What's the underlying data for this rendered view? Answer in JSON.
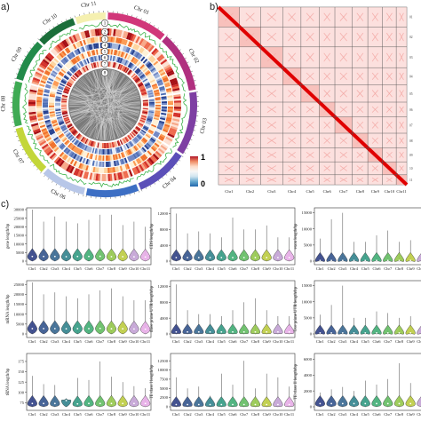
{
  "panels": {
    "a": {
      "letter": "a)"
    },
    "b": {
      "letter": "b)"
    },
    "c": {
      "letter": "c)"
    }
  },
  "circos": {
    "chromosomes": [
      "Chr 01",
      "Chr 02",
      "Chr 03",
      "Chr 04",
      "Chr 05",
      "Chr 06",
      "Chr 07",
      "Chr 08",
      "Chr 09",
      "Chr 10",
      "Chr 11"
    ],
    "chr_colors": [
      "#d1377a",
      "#b0307f",
      "#7e3fa3",
      "#5b4fb8",
      "#3d6fc4",
      "#b8c7e8",
      "#c3d63a",
      "#3faa54",
      "#228a4a",
      "#1b6e3a",
      "#f5f0b0"
    ],
    "track_numbers": [
      "1",
      "2",
      "3",
      "4",
      "5",
      "6",
      "7",
      "8"
    ]
  },
  "colorbar": {
    "max_label": "1",
    "min_label": "0"
  },
  "heatmap": {
    "chromosomes": [
      "Chr1",
      "Chr2",
      "Chr3",
      "Chr4",
      "Chr5",
      "Chr6",
      "Chr7",
      "Chr8",
      "Chr9",
      "Chr10",
      "Chr11"
    ],
    "chr_fraction": [
      0.112,
      0.112,
      0.117,
      0.097,
      0.097,
      0.083,
      0.092,
      0.083,
      0.078,
      0.073,
      0.056
    ],
    "right_tick_labels": [
      "01",
      "02",
      "03",
      "04",
      "05",
      "06",
      "07",
      "08",
      "09",
      "10",
      "11"
    ]
  },
  "chart_data": [
    {
      "type": "violin",
      "ylabel": "gene length/bp",
      "yticks": [
        "0",
        "5000",
        "10000",
        "15000",
        "20000",
        "25000",
        "30000"
      ],
      "ylim": [
        0,
        30000
      ],
      "categories": [
        "Chr1",
        "Chr2",
        "Chr3",
        "Chr4",
        "Chr5",
        "Chr6",
        "Chr7",
        "Chr8",
        "Chr9",
        "Chr10",
        "Chr11"
      ],
      "medians": [
        2700,
        2700,
        2700,
        2600,
        2700,
        2700,
        2800,
        2600,
        2600,
        2500,
        2400
      ],
      "max": [
        30000,
        23000,
        26000,
        23000,
        22000,
        24000,
        27000,
        27000,
        21000,
        23000,
        20000
      ]
    },
    {
      "type": "violin",
      "ylabel": "CDS length/bp",
      "yticks": [
        "0",
        "4000",
        "8000",
        "12000"
      ],
      "ylim": [
        0,
        13000
      ],
      "categories": [
        "Chr1",
        "Chr2",
        "Chr3",
        "Chr4",
        "Chr5",
        "Chr6",
        "Chr7",
        "Chr8",
        "Chr9",
        "Chr10",
        "Chr11"
      ],
      "medians": [
        900,
        900,
        900,
        900,
        900,
        900,
        900,
        900,
        900,
        900,
        900
      ],
      "max": [
        12000,
        7000,
        7500,
        7000,
        6000,
        11000,
        8000,
        8000,
        9000,
        6000,
        6000
      ]
    },
    {
      "type": "violin",
      "ylabel": "exon length/bp",
      "yticks": [
        "0",
        "5000",
        "10000",
        "15000"
      ],
      "ylim": [
        0,
        16000
      ],
      "categories": [
        "Chr1",
        "Chr2",
        "Chr3",
        "Chr4",
        "Chr5",
        "Chr6",
        "Chr7",
        "Chr8",
        "Chr9",
        "Chr10",
        "Chr11"
      ],
      "medians": [
        200,
        200,
        200,
        200,
        200,
        200,
        200,
        200,
        200,
        200,
        200
      ],
      "max": [
        7000,
        13000,
        15000,
        6000,
        6000,
        8000,
        9500,
        6000,
        6500,
        5500,
        4000
      ]
    },
    {
      "type": "violin",
      "ylabel": "mRNA length/bp",
      "yticks": [
        "0",
        "5000",
        "10000",
        "15000",
        "20000",
        "25000"
      ],
      "ylim": [
        0,
        26000
      ],
      "categories": [
        "Chr1",
        "Chr2",
        "Chr3",
        "Chr4",
        "Chr5",
        "Chr6",
        "Chr7",
        "Chr8",
        "Chr9",
        "Chr10",
        "Chr11"
      ],
      "medians": [
        2700,
        2700,
        2700,
        2600,
        2700,
        2700,
        2800,
        2600,
        2600,
        2500,
        2400
      ],
      "max": [
        26000,
        20000,
        21000,
        19000,
        18000,
        20000,
        22000,
        23000,
        19000,
        17000,
        17000
      ]
    },
    {
      "type": "violin",
      "ylabel": "three prime UTR length/bp",
      "yticks": [
        "0",
        "4000",
        "8000",
        "12000"
      ],
      "ylim": [
        0,
        13000
      ],
      "categories": [
        "Chr1",
        "Chr2",
        "Chr3",
        "Chr4",
        "Chr5",
        "Chr6",
        "Chr7",
        "Chr8",
        "Chr9",
        "Chr10",
        "Chr11"
      ],
      "medians": [
        500,
        500,
        500,
        500,
        500,
        500,
        500,
        500,
        500,
        500,
        500
      ],
      "max": [
        12500,
        6000,
        5000,
        5000,
        4500,
        6000,
        8000,
        9000,
        6000,
        4500,
        4500
      ]
    },
    {
      "type": "violin",
      "ylabel": "five prime UTR length/bp",
      "yticks": [
        "0",
        "5000",
        "10000",
        "15000"
      ],
      "ylim": [
        0,
        16000
      ],
      "categories": [
        "Chr1",
        "Chr2",
        "Chr3",
        "Chr4",
        "Chr5",
        "Chr6",
        "Chr7",
        "Chr8",
        "Chr9",
        "Chr10",
        "Chr11"
      ],
      "medians": [
        300,
        300,
        300,
        300,
        300,
        300,
        300,
        300,
        300,
        300,
        300
      ],
      "max": [
        6000,
        9000,
        15000,
        5000,
        5000,
        7000,
        6500,
        5000,
        5500,
        4000,
        3500
      ]
    },
    {
      "type": "violin",
      "ylabel": "tRNA length/bp",
      "yticks": [
        "75",
        "100",
        "125",
        "150",
        "175"
      ],
      "ylim": [
        65,
        190
      ],
      "categories": [
        "Chr1",
        "Chr2",
        "Chr3",
        "Chr4",
        "Chr5",
        "Chr6",
        "Chr7",
        "Chr8",
        "Chr9",
        "Chr10",
        "Chr11"
      ],
      "medians": [
        73,
        73,
        73,
        80,
        72,
        73,
        73,
        73,
        73,
        73,
        73
      ],
      "max": [
        140,
        120,
        118,
        85,
        135,
        130,
        175,
        138,
        125,
        115,
        110
      ]
    },
    {
      "type": "violin",
      "ylabel": "TE class I length/bp",
      "yticks": [
        "0",
        "2500",
        "5000",
        "7500",
        "10000",
        "12500"
      ],
      "ylim": [
        0,
        14000
      ],
      "categories": [
        "Chr1",
        "Chr2",
        "Chr3",
        "Chr4",
        "Chr5",
        "Chr6",
        "Chr7",
        "Chr8",
        "Chr9",
        "Chr10",
        "Chr11"
      ],
      "medians": [
        600,
        600,
        600,
        600,
        600,
        600,
        600,
        600,
        600,
        600,
        600
      ],
      "max": [
        8000,
        5000,
        5500,
        3000,
        9000,
        6000,
        12500,
        5000,
        9000,
        8000,
        5500
      ]
    },
    {
      "type": "violin",
      "ylabel": "TE class II length/bp",
      "yticks": [
        "0",
        "2000",
        "4000",
        "6000"
      ],
      "ylim": [
        0,
        6500
      ],
      "categories": [
        "Chr1",
        "Chr2",
        "Chr3",
        "Chr4",
        "Chr5",
        "Chr6",
        "Chr7",
        "Chr8",
        "Chr9",
        "Chr10",
        "Chr11"
      ],
      "medians": [
        400,
        400,
        400,
        400,
        400,
        400,
        400,
        400,
        400,
        400,
        400
      ],
      "max": [
        1800,
        2200,
        2500,
        2000,
        3300,
        2800,
        3500,
        5500,
        3000,
        2500,
        3000
      ]
    }
  ],
  "violin_colors": [
    "#3b4a8c",
    "#3f5d93",
    "#426f96",
    "#3d8a93",
    "#3ea08a",
    "#4ab27c",
    "#6bc06a",
    "#9acb55",
    "#c0cf4a",
    "#c7a7d8",
    "#e8b0e8"
  ]
}
